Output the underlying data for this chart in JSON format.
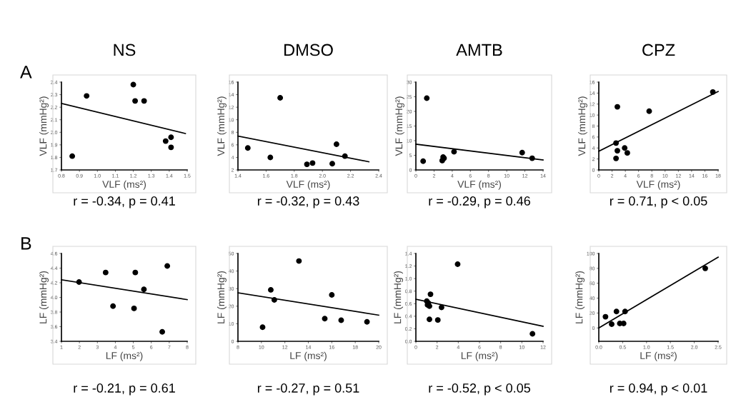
{
  "chart_data": [
    {
      "type": "scatter",
      "title": "NS",
      "xlabel": "VLF (ms²)",
      "ylabel": "VLF (mmHg²)",
      "xlim": [
        0.8,
        1.5
      ],
      "ylim": [
        1.7,
        2.4
      ],
      "xticks": [
        0.8,
        0.9,
        {
          "value": 1,
          "label": "1.0"
        },
        1.1,
        1.2,
        1.3,
        1.4,
        1.5
      ],
      "yticks": [
        1.7,
        1.8,
        1.9,
        {
          "value": 2,
          "label": "2.0"
        },
        2.1,
        2.2,
        2.3,
        2.4
      ],
      "grid": false,
      "annotations": [
        "r = -0.34, p = 0.41",
        "A"
      ],
      "series": [
        {
          "marker": "circle",
          "color": "#000000",
          "x": [
            0.86,
            0.94,
            1.2,
            1.21,
            1.26,
            1.38,
            1.41,
            1.41
          ],
          "values": [
            1.81,
            2.29,
            2.38,
            2.25,
            2.25,
            1.93,
            1.96,
            1.88
          ]
        },
        {
          "type": "line",
          "color": "#000000",
          "x": [
            0.8,
            1.49
          ],
          "values": [
            2.23,
            1.99
          ]
        }
      ]
    },
    {
      "type": "scatter",
      "title": "DMSO",
      "xlabel": "VLF (ms²)",
      "ylabel": "VLF (mmHg²)",
      "xlim": [
        1.4,
        2.4
      ],
      "ylim": [
        2,
        16
      ],
      "xticks": [
        1.4,
        1.6,
        1.8,
        {
          "value": 2,
          "label": "2.0"
        },
        2.2,
        2.4
      ],
      "yticks": [
        2,
        4,
        6,
        8,
        10,
        12,
        14,
        16
      ],
      "grid": false,
      "annotations": [
        "r = -0.32, p = 0.43"
      ],
      "series": [
        {
          "marker": "circle",
          "color": "#000000",
          "x": [
            1.47,
            1.63,
            1.7,
            1.89,
            1.93,
            2.07,
            2.1,
            2.16
          ],
          "values": [
            5.5,
            4.0,
            13.5,
            2.9,
            3.1,
            3.0,
            6.1,
            4.2
          ]
        },
        {
          "type": "line",
          "color": "#000000",
          "x": [
            1.4,
            2.33
          ],
          "values": [
            7.4,
            3.3
          ]
        }
      ]
    },
    {
      "type": "scatter",
      "title": "AMTB",
      "xlabel": "VLF (ms²)",
      "ylabel": "VLF (mmHg²)",
      "xlim": [
        0,
        14
      ],
      "ylim": [
        0,
        30
      ],
      "xticks": [
        0,
        2,
        4,
        6,
        8,
        10,
        12,
        14
      ],
      "yticks": [
        0,
        5,
        10,
        15,
        20,
        25,
        30
      ],
      "grid": false,
      "annotations": [
        "r = -0.29, p = 0.46"
      ],
      "series": [
        {
          "marker": "circle",
          "color": "#000000",
          "x": [
            0.8,
            1.2,
            2.9,
            3.0,
            3.1,
            4.2,
            11.7,
            12.8
          ],
          "values": [
            3,
            24.5,
            3.2,
            4.4,
            4,
            6.2,
            5.9,
            4
          ]
        },
        {
          "type": "line",
          "color": "#000000",
          "x": [
            0,
            14
          ],
          "values": [
            8.8,
            3.4
          ]
        }
      ]
    },
    {
      "type": "scatter",
      "title": "CPZ",
      "xlabel": "VLF (ms²)",
      "ylabel": "VLF (mmHg²)",
      "xlim": [
        0,
        18
      ],
      "ylim": [
        0,
        16
      ],
      "xticks": [
        0,
        2,
        4,
        6,
        8,
        10,
        12,
        14,
        16,
        18
      ],
      "yticks": [
        0,
        2,
        4,
        6,
        8,
        10,
        12,
        14,
        16
      ],
      "grid": false,
      "annotations": [
        "r = 0.71, p < 0.05"
      ],
      "series": [
        {
          "marker": "circle",
          "color": "#000000",
          "x": [
            2.6,
            2.8,
            2.8,
            2.6,
            3.9,
            4.3,
            7.6,
            17.2
          ],
          "values": [
            4.9,
            11.5,
            3.5,
            2.1,
            4.0,
            3.1,
            10.7,
            14.2
          ]
        },
        {
          "type": "line",
          "color": "#000000",
          "x": [
            0,
            18
          ],
          "values": [
            3.4,
            14.3
          ]
        }
      ]
    },
    {
      "type": "scatter",
      "xlabel": "LF (ms²)",
      "ylabel": "LF (mmHg²)",
      "xlim": [
        1,
        8
      ],
      "ylim": [
        3.4,
        4.6
      ],
      "xticks": [
        1,
        2,
        3,
        4,
        5,
        6,
        7,
        8
      ],
      "yticks": [
        3.4,
        3.6,
        3.8,
        {
          "value": 4,
          "label": "4.0"
        },
        4.2,
        4.4,
        4.6
      ],
      "grid": false,
      "annotations": [
        "r = -0.21, p = 0.61",
        "B"
      ],
      "series": [
        {
          "marker": "circle",
          "color": "#000000",
          "x": [
            1.98,
            3.46,
            3.87,
            5.04,
            5.11,
            5.59,
            6.61,
            6.89
          ],
          "values": [
            4.21,
            4.34,
            3.88,
            3.85,
            4.34,
            4.11,
            3.53,
            4.43
          ]
        },
        {
          "type": "line",
          "color": "#000000",
          "x": [
            1,
            8
          ],
          "values": [
            4.24,
            3.97
          ]
        }
      ]
    },
    {
      "type": "scatter",
      "xlabel": "LF (ms²)",
      "ylabel": "LF (mmHg²)",
      "xlim": [
        8,
        20
      ],
      "ylim": [
        0,
        50
      ],
      "xticks": [
        8,
        10,
        12,
        14,
        16,
        18,
        20
      ],
      "yticks": [
        0,
        10,
        20,
        30,
        40,
        50
      ],
      "grid": false,
      "annotations": [
        "r = -0.27, p = 0.51"
      ],
      "series": [
        {
          "marker": "circle",
          "color": "#000000",
          "x": [
            10.1,
            10.8,
            11.1,
            13.2,
            15.4,
            16.0,
            16.8,
            19.0
          ],
          "values": [
            8.0,
            29.3,
            23.6,
            45.7,
            12.9,
            26.4,
            12.0,
            11.1
          ]
        },
        {
          "type": "line",
          "color": "#000000",
          "x": [
            8,
            20
          ],
          "values": [
            27.6,
            14.9
          ]
        }
      ]
    },
    {
      "type": "scatter",
      "xlabel": "LF (ms²)",
      "ylabel": "LF (mmHg²)",
      "xlim": [
        0,
        12
      ],
      "ylim": [
        0,
        1.4
      ],
      "xticks": [
        0,
        2,
        4,
        6,
        8,
        10,
        12
      ],
      "yticks": [
        {
          "value": 0,
          "label": "0.0"
        },
        0.2,
        0.4,
        0.6,
        0.8,
        {
          "value": 1,
          "label": "1.0"
        },
        1.2,
        1.4
      ],
      "grid": false,
      "annotations": [
        "r = -0.52, p < 0.05"
      ],
      "series": [
        {
          "marker": "circle",
          "color": "#000000",
          "x": [
            1.03,
            1.1,
            1.17,
            1.28,
            1.38,
            1.28,
            2.07,
            2.42,
            3.94,
            11.0
          ],
          "values": [
            0.64,
            0.58,
            0.61,
            0.56,
            0.75,
            0.35,
            0.34,
            0.54,
            1.23,
            0.12
          ]
        },
        {
          "type": "line",
          "color": "#000000",
          "x": [
            0,
            12
          ],
          "values": [
            0.67,
            0.24
          ]
        }
      ]
    },
    {
      "type": "scatter",
      "xlabel": "LF (ms²)",
      "ylabel": "LF (mmHg²)",
      "xlim": [
        0,
        2.5
      ],
      "ylim": [
        -18,
        100
      ],
      "xticks": [
        {
          "value": 0,
          "label": "0.0"
        },
        0.5,
        {
          "value": 1,
          "label": "1.0"
        },
        1.5,
        {
          "value": 2,
          "label": "2.0"
        },
        2.5
      ],
      "yticks": [
        0,
        20,
        40,
        60,
        80,
        100
      ],
      "grid": false,
      "annotations": [
        "r = 0.94, p < 0.01"
      ],
      "series": [
        {
          "marker": "circle",
          "color": "#000000",
          "x": [
            0.14,
            0.27,
            0.37,
            0.44,
            0.52,
            0.55,
            2.23
          ],
          "values": [
            15,
            5,
            22,
            6,
            6,
            22,
            80
          ]
        },
        {
          "type": "line",
          "color": "#000000",
          "x": [
            0,
            2.5
          ],
          "values": [
            0,
            95
          ]
        }
      ]
    }
  ]
}
